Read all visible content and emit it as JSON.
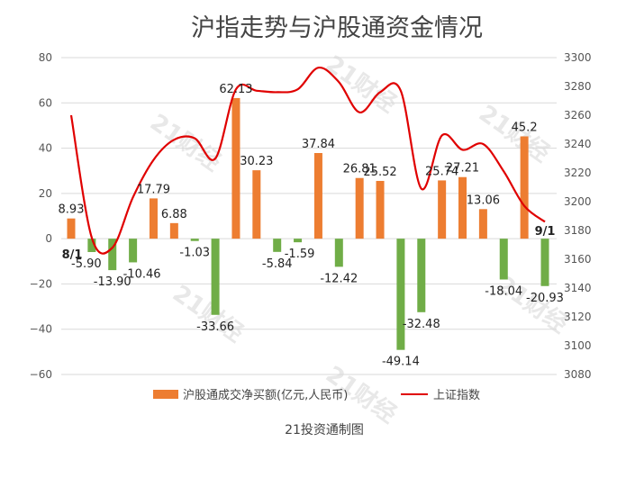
{
  "title": "沪指走势与沪股通资金情况",
  "source": "21投资通制图",
  "watermark": "21财经",
  "chart_data": {
    "type": "bar",
    "title": "沪指走势与沪股通资金情况",
    "y_left_ticks": [
      "80",
      "60",
      "40",
      "20",
      "0",
      "−20",
      "−40",
      "−60"
    ],
    "y_right_ticks": [
      "3300",
      "3280",
      "3260",
      "3240",
      "3220",
      "3200",
      "3180",
      "3160",
      "3140",
      "3120",
      "3100",
      "3080"
    ],
    "ylim_left": [
      -60,
      80
    ],
    "ylim_right": [
      3080,
      3300
    ],
    "start_label": "8/1",
    "end_label": "9/1",
    "legend_position": "bottom",
    "series": [
      {
        "name": "沪股通成交净买额(亿元,人民币)",
        "kind": "bar",
        "axis": "left",
        "values": [
          8.93,
          -5.9,
          -13.9,
          -10.46,
          17.79,
          6.88,
          -1.03,
          -33.66,
          62.13,
          30.23,
          -5.84,
          -1.59,
          37.84,
          -12.42,
          26.81,
          25.52,
          -49.14,
          -32.48,
          25.74,
          27.21,
          13.06,
          -18.04,
          45.2,
          -20.93
        ],
        "labels": [
          "8.93",
          "-5.90",
          "-13.90",
          "-10.46",
          "17.79",
          "6.88",
          "-1.03",
          "-33.66",
          "62.13",
          "30.23",
          "-5.84",
          "-1.59",
          "37.84",
          "-12.42",
          "26.81",
          "25.52",
          "-49.14",
          "-32.48",
          "25.74",
          "27.21",
          "13.06",
          "-18.04",
          "45.2",
          "-20.93"
        ],
        "color_positive": "#ed7d31",
        "color_negative": "#70ad47"
      },
      {
        "name": "上证指数",
        "kind": "line",
        "axis": "right",
        "color": "#e00000",
        "values": [
          3260,
          3175,
          3168,
          3203,
          3229,
          3243,
          3244,
          3230,
          3278,
          3277,
          3276,
          3278,
          3293,
          3283,
          3262,
          3276,
          3277,
          3209,
          3246,
          3236,
          3240,
          3221,
          3197,
          3186
        ]
      }
    ]
  }
}
